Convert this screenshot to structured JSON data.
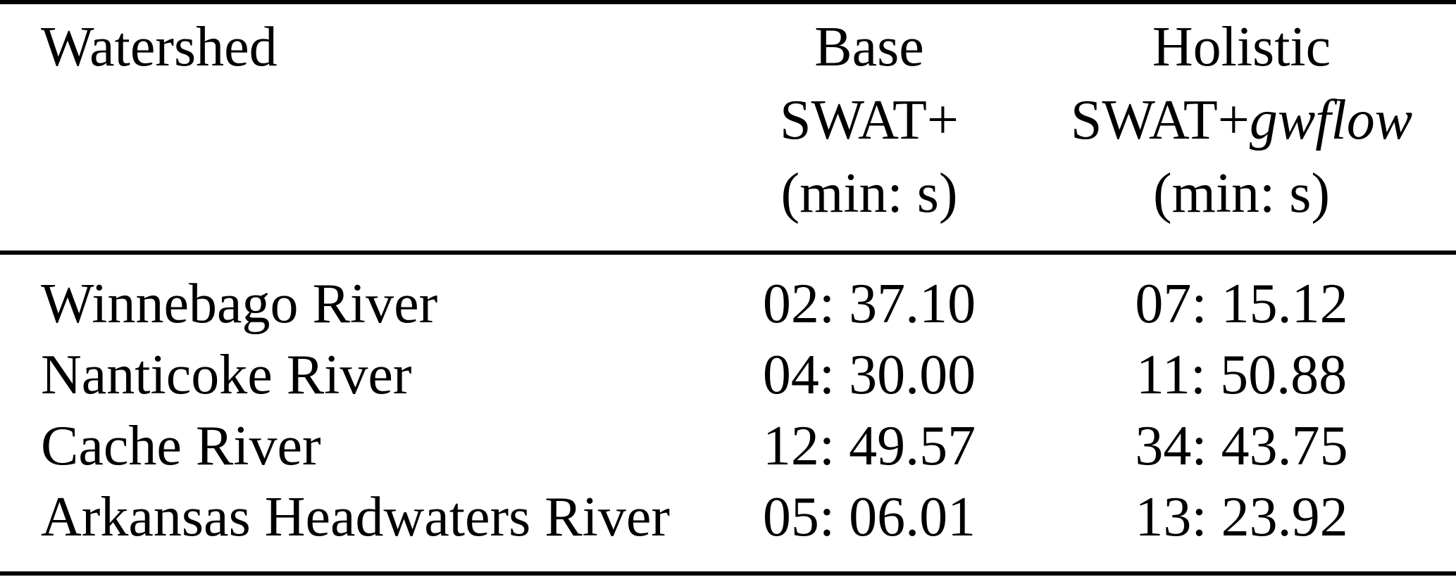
{
  "table": {
    "columns": {
      "watershed": "Watershed",
      "base": {
        "line1": "Base",
        "line2": "SWAT+",
        "line3": "(min: s)"
      },
      "holistic": {
        "line1": "Holistic",
        "line2_plain": "SWAT+",
        "line2_italic": "gwflow",
        "line3": "(min: s)"
      }
    },
    "rows": [
      {
        "watershed": "Winnebago River",
        "base": "02: 37.10",
        "holistic": "07: 15.12"
      },
      {
        "watershed": "Nanticoke River",
        "base": "04: 30.00",
        "holistic": "11: 50.88"
      },
      {
        "watershed": "Cache River",
        "base": "12: 49.57",
        "holistic": "34: 43.75"
      },
      {
        "watershed": "Arkansas Headwaters River",
        "base": "05: 06.01",
        "holistic": "13: 23.92"
      }
    ]
  },
  "colors": {
    "background": "#ffffff",
    "text": "#000000",
    "rule": "#000000"
  }
}
